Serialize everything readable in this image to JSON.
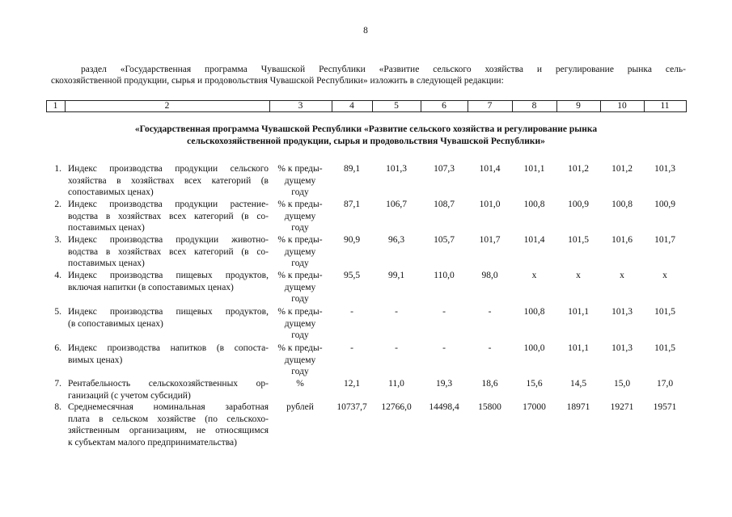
{
  "page_number": "8",
  "intro": [
    "раздел «Государственная программа Чувашской Республики «Развитие сельского хозяйства и регулирование рынка сель-",
    "скохозяйственной продукции, сырья и продовольствия Чувашской Республики» изложить в следующей редакции:"
  ],
  "header": [
    "1",
    "2",
    "3",
    "4",
    "5",
    "6",
    "7",
    "8",
    "9",
    "10",
    "11"
  ],
  "section_title": [
    "«Государственная программа Чувашской Республики «Развитие сельского хозяйства и регулирование рынка",
    "сельскохозяйственной продукции, сырья и продовольствия Чувашской Республики»"
  ],
  "rows": [
    {
      "num": "1.",
      "name": [
        "Индекс производства продукции сельского",
        "хозяйства в хозяйствах всех категорий (в",
        "сопоставимых ценах)"
      ],
      "unit": [
        "% к преды-",
        "дущему",
        "году"
      ],
      "values": [
        "89,1",
        "101,3",
        "107,3",
        "101,4",
        "101,1",
        "101,2",
        "101,2",
        "101,3"
      ]
    },
    {
      "num": "2.",
      "name": [
        "Индекс производства продукции растение-",
        "водства в хозяйствах всех категорий (в со-",
        "поставимых ценах)"
      ],
      "unit": [
        "% к преды-",
        "дущему",
        "году"
      ],
      "values": [
        "87,1",
        "106,7",
        "108,7",
        "101,0",
        "100,8",
        "100,9",
        "100,8",
        "100,9"
      ]
    },
    {
      "num": "3.",
      "name": [
        "Индекс производства продукции животно-",
        "водства в хозяйствах всех категорий (в со-",
        "поставимых ценах)"
      ],
      "unit": [
        "% к преды-",
        "дущему",
        "году"
      ],
      "values": [
        "90,9",
        "96,3",
        "105,7",
        "101,7",
        "101,4",
        "101,5",
        "101,6",
        "101,7"
      ]
    },
    {
      "num": "4.",
      "name": [
        "Индекс производства пищевых продуктов,",
        "включая напитки (в сопоставимых ценах)"
      ],
      "unit": [
        "% к преды-",
        "дущему",
        "году"
      ],
      "values": [
        "95,5",
        "99,1",
        "110,0",
        "98,0",
        "x",
        "x",
        "x",
        "x"
      ]
    },
    {
      "num": "5.",
      "name": [
        "Индекс производства пищевых продуктов,",
        "(в сопоставимых ценах)"
      ],
      "unit": [
        "% к преды-",
        "дущему",
        "году"
      ],
      "values": [
        "-",
        "-",
        "-",
        "-",
        "100,8",
        "101,1",
        "101,3",
        "101,5"
      ]
    },
    {
      "num": "6.",
      "name": [
        "Индекс производства напитков (в сопоста-",
        "вимых ценах)"
      ],
      "unit": [
        "% к преды-",
        "дущему",
        "году"
      ],
      "values": [
        "-",
        "-",
        "-",
        "-",
        "100,0",
        "101,1",
        "101,3",
        "101,5"
      ]
    },
    {
      "num": "7.",
      "name": [
        "Рентабельность сельскохозяйственных ор-",
        "ганизаций (с учетом субсидий)"
      ],
      "unit": [
        "%"
      ],
      "values": [
        "12,1",
        "11,0",
        "19,3",
        "18,6",
        "15,6",
        "14,5",
        "15,0",
        "17,0"
      ]
    },
    {
      "num": "8.",
      "name": [
        "Среднемесячная номинальная заработная",
        "плата в сельском хозяйстве (по сельскохо-",
        "зяйственным организациям, не относящимся",
        "к субъектам малого предпринимательства)"
      ],
      "unit": [
        "рублей"
      ],
      "values": [
        "10737,7",
        "12766,0",
        "14498,4",
        "15800",
        "17000",
        "18971",
        "19271",
        "19571"
      ]
    }
  ]
}
